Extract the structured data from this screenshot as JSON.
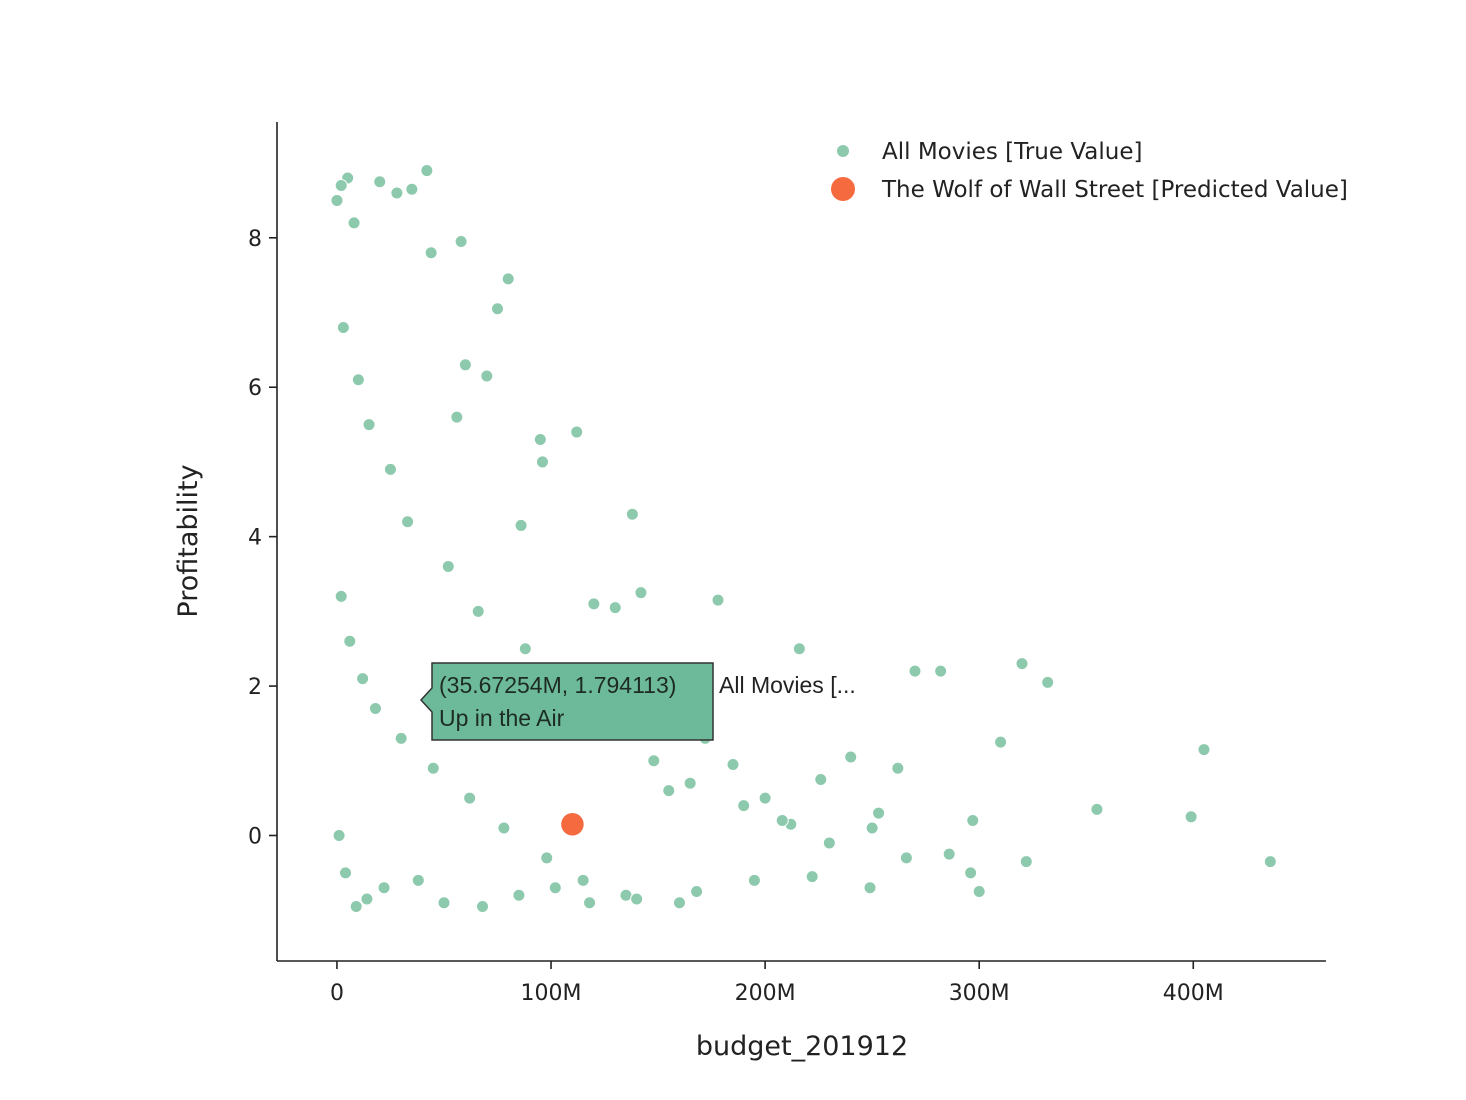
{
  "chart_data": {
    "type": "scatter",
    "xlabel": "budget_201912",
    "ylabel": "Profitability",
    "xlim": [
      -28000000,
      462000000
    ],
    "ylim": [
      -1.68,
      9.55
    ],
    "x_ticks": [
      {
        "value": 0,
        "label": "0"
      },
      {
        "value": 100000000,
        "label": "100M"
      },
      {
        "value": 200000000,
        "label": "200M"
      },
      {
        "value": 300000000,
        "label": "300M"
      },
      {
        "value": 400000000,
        "label": "400M"
      }
    ],
    "y_ticks": [
      {
        "value": 0,
        "label": "0"
      },
      {
        "value": 2,
        "label": "2"
      },
      {
        "value": 4,
        "label": "4"
      },
      {
        "value": 6,
        "label": "6"
      },
      {
        "value": 8,
        "label": "8"
      }
    ],
    "grid": false,
    "legend_position": "top-right",
    "series": [
      {
        "name": "All Movies [True Value]",
        "color": "#8dc9ad",
        "x": [
          0,
          5000000,
          2000000,
          8000000,
          20000000,
          35000000,
          42000000,
          28000000,
          58000000,
          44000000,
          80000000,
          75000000,
          95000000,
          112000000,
          138000000,
          96000000,
          130000000,
          60000000,
          70000000,
          56000000,
          86000000,
          120000000,
          142000000,
          178000000,
          216000000,
          270000000,
          282000000,
          320000000,
          332000000,
          310000000,
          405000000,
          355000000,
          399000000,
          436000000,
          297000000,
          253000000,
          240000000,
          226000000,
          249000000,
          300000000,
          286000000,
          262000000,
          250000000,
          212000000,
          200000000,
          185000000,
          172000000,
          155000000,
          3000000,
          10000000,
          15000000,
          25000000,
          33000000,
          52000000,
          66000000,
          88000000,
          106000000,
          128000000,
          148000000,
          165000000,
          190000000,
          208000000,
          230000000,
          266000000,
          296000000,
          322000000,
          2000000,
          6000000,
          12000000,
          18000000,
          30000000,
          45000000,
          62000000,
          78000000,
          98000000,
          115000000,
          135000000,
          160000000,
          1000000,
          4000000,
          9000000,
          14000000,
          22000000,
          38000000,
          50000000,
          68000000,
          85000000,
          102000000,
          118000000,
          140000000,
          168000000,
          195000000,
          222000000
        ],
        "y": [
          8.5,
          8.8,
          8.7,
          8.2,
          8.75,
          8.65,
          8.9,
          8.6,
          7.95,
          7.8,
          7.45,
          7.05,
          5.3,
          5.4,
          4.3,
          5.0,
          3.05,
          6.3,
          6.15,
          5.6,
          4.15,
          3.1,
          3.25,
          3.15,
          2.5,
          2.2,
          2.2,
          2.3,
          2.05,
          1.25,
          1.15,
          0.35,
          0.25,
          -0.35,
          0.2,
          0.3,
          1.05,
          0.75,
          -0.7,
          -0.75,
          -0.25,
          0.9,
          0.1,
          0.15,
          0.5,
          0.95,
          1.3,
          0.6,
          6.8,
          6.1,
          5.5,
          4.9,
          4.2,
          3.6,
          3.0,
          2.5,
          1.9,
          1.4,
          1.0,
          0.7,
          0.4,
          0.2,
          -0.1,
          -0.3,
          -0.5,
          -0.35,
          3.2,
          2.6,
          2.1,
          1.7,
          1.3,
          0.9,
          0.5,
          0.1,
          -0.3,
          -0.6,
          -0.8,
          -0.9,
          0.0,
          -0.5,
          -0.95,
          -0.85,
          -0.7,
          -0.6,
          -0.9,
          -0.95,
          -0.8,
          -0.7,
          -0.9,
          -0.85,
          -0.75,
          -0.6,
          -0.55
        ]
      },
      {
        "name": "The Wolf of Wall Street [Predicted Value]",
        "color": "#f56a3f",
        "x": [
          110000000
        ],
        "y": [
          0.15
        ]
      }
    ],
    "hover": {
      "coords": "(35.67254M, 1.794113)",
      "series_short": "All Movies [...",
      "title": "Up in the Air",
      "x": 35672540,
      "y": 1.794113
    }
  }
}
